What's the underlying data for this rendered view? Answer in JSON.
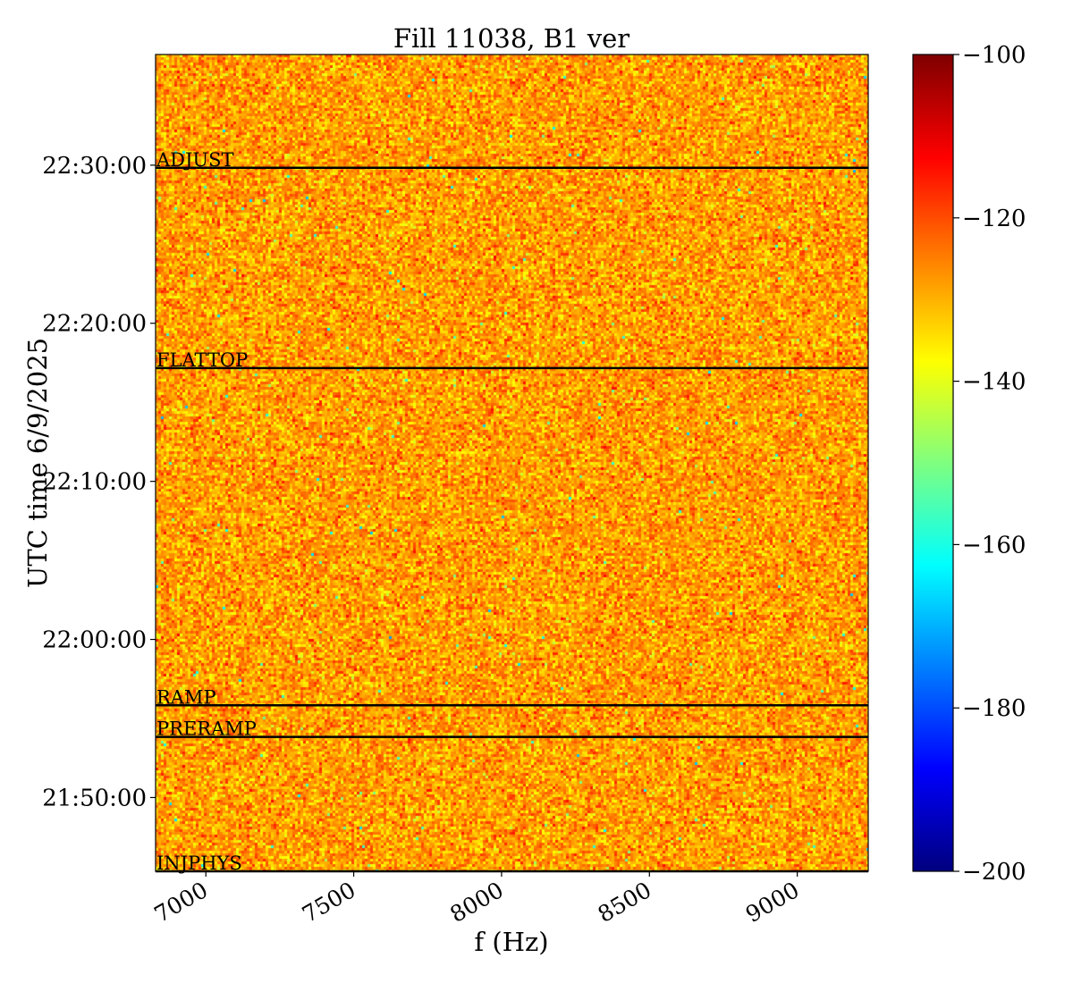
{
  "chart_data": {
    "type": "heatmap",
    "title": "Fill 11038, B1 ver",
    "xlabel": "f (Hz)",
    "ylabel": "UTC time 6/9/2025",
    "xlim": [
      6830,
      9240
    ],
    "ylim": [
      "21:45:20",
      "22:37:00"
    ],
    "x_ticks": [
      7000,
      7500,
      8000,
      8500,
      9000
    ],
    "x_tick_labels": [
      "7000",
      "7500",
      "8000",
      "8500",
      "9000"
    ],
    "y_ticks": [
      "21:50:00",
      "22:00:00",
      "22:10:00",
      "22:20:00",
      "22:30:00"
    ],
    "y_tick_labels": [
      "21:50:00",
      "22:00:00",
      "22:10:00",
      "22:20:00",
      "22:30:00"
    ],
    "colormap": "jet",
    "color_range": [
      -200,
      -100
    ],
    "colorbar_ticks": [
      -100,
      -120,
      -140,
      -160,
      -180,
      -200
    ],
    "colorbar_tick_labels": [
      "−100",
      "−120",
      "−140",
      "−160",
      "−180",
      "−200"
    ],
    "typical_value": -128,
    "beam_modes": [
      {
        "label": "ADJUST",
        "time": "22:29:50"
      },
      {
        "label": "FLATTOP",
        "time": "22:17:10"
      },
      {
        "label": "RAMP",
        "time": "21:55:50"
      },
      {
        "label": "PRERAMP",
        "time": "21:53:50"
      },
      {
        "label": "INJPHYS",
        "time": "21:45:20"
      }
    ],
    "grid": false,
    "legend": "none"
  }
}
